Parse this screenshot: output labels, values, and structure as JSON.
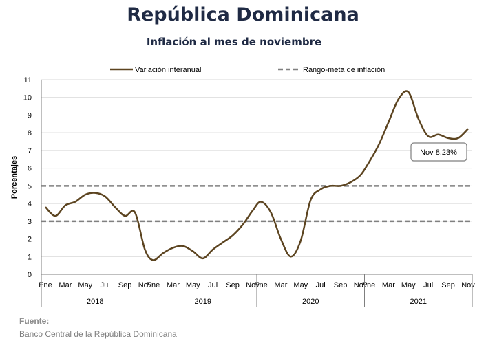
{
  "header": {
    "title": "República Dominicana",
    "subtitle": "Inflación al mes de noviembre"
  },
  "source": {
    "label": "Fuente:",
    "text": "Banco Central de la República Dominicana"
  },
  "colors": {
    "series": "#5c4420",
    "target": "#808080",
    "grid": "#d9d9d9",
    "title": "#1f2a44"
  },
  "chart_data": {
    "type": "line",
    "ylabel": "Porcentajes",
    "ylim": [
      0,
      11
    ],
    "yticks": [
      0,
      1,
      2,
      3,
      4,
      5,
      6,
      7,
      8,
      9,
      10,
      11
    ],
    "grid": "horizontal",
    "legend_placement": "top",
    "month_labels": [
      "Ene",
      "Mar",
      "May",
      "Jul",
      "Sep",
      "Nov"
    ],
    "years": [
      "2018",
      "2019",
      "2020",
      "2021"
    ],
    "series": [
      {
        "name": "Variación interanual",
        "values": [
          3.8,
          3.3,
          3.9,
          4.1,
          4.5,
          4.6,
          4.4,
          3.8,
          3.3,
          3.5,
          1.4,
          0.8,
          1.2,
          1.5,
          1.6,
          1.3,
          0.9,
          1.4,
          1.8,
          2.2,
          2.8,
          3.6,
          4.1,
          3.5,
          2.0,
          1.0,
          1.9,
          4.2,
          4.8,
          5.0,
          5.0,
          5.2,
          5.6,
          6.3,
          7.3,
          8.6,
          9.9,
          10.3,
          8.8,
          7.8,
          7.9,
          7.7,
          7.7,
          8.23
        ]
      },
      {
        "name": "Rango-meta de inflación",
        "values": [
          5,
          3
        ]
      }
    ],
    "annotation": {
      "text": "Nov 8.23%",
      "value": 8.23
    }
  }
}
